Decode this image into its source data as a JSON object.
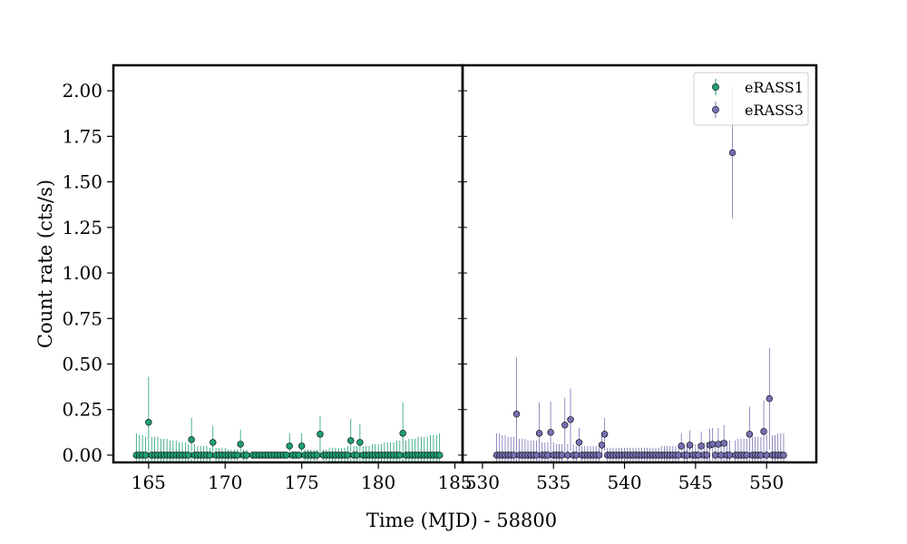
{
  "figure": {
    "xlabel": "Time (MJD) - 58800",
    "ylabel": "Count rate (cts/s)"
  },
  "legend": {
    "placement": "top-right",
    "entries": [
      {
        "label": "eRASS1",
        "color": "#1f9e74"
      },
      {
        "label": "eRASS3",
        "color": "#7570b3"
      }
    ]
  },
  "colors": {
    "erass1": "#1f9e74",
    "erass3": "#7570b3",
    "marker_edge": "#000000",
    "axes": "#000000"
  },
  "chart_data": [
    {
      "type": "scatter",
      "panel": "left",
      "series": [
        {
          "name": "eRASS1",
          "x": [
            164.2,
            164.4,
            164.6,
            164.8,
            165.0,
            165.2,
            165.4,
            165.6,
            165.8,
            166.0,
            166.2,
            166.4,
            166.6,
            166.8,
            167.0,
            167.2,
            167.4,
            167.6,
            167.8,
            168.0,
            168.2,
            168.4,
            168.6,
            168.8,
            169.0,
            169.2,
            169.4,
            169.6,
            169.8,
            170.0,
            170.2,
            170.4,
            170.6,
            170.8,
            171.0,
            171.2,
            171.4,
            171.8,
            172.0,
            172.2,
            172.4,
            172.6,
            172.8,
            173.0,
            173.2,
            173.4,
            173.6,
            173.8,
            174.0,
            174.2,
            174.4,
            174.6,
            174.8,
            175.0,
            175.2,
            175.4,
            175.6,
            175.8,
            176.0,
            176.2,
            176.4,
            176.6,
            176.8,
            177.0,
            177.2,
            177.4,
            177.6,
            177.8,
            178.0,
            178.2,
            178.4,
            178.6,
            178.8,
            179.0,
            179.2,
            179.4,
            179.6,
            179.8,
            180.0,
            180.2,
            180.4,
            180.6,
            180.8,
            181.0,
            181.2,
            181.4,
            181.6,
            181.8,
            182.0,
            182.2,
            182.4,
            182.6,
            182.8,
            183.0,
            183.2,
            183.4,
            183.6,
            183.8,
            184.0
          ],
          "y": [
            0.0,
            0.0,
            0.0,
            0.0,
            0.18,
            0.0,
            0.0,
            0.0,
            0.0,
            0.0,
            0.0,
            0.0,
            0.0,
            0.0,
            0.0,
            0.0,
            0.0,
            0.0,
            0.085,
            0.0,
            0.0,
            0.0,
            0.0,
            0.0,
            0.0,
            0.07,
            0.0,
            0.0,
            0.0,
            0.0,
            0.0,
            0.0,
            0.0,
            0.0,
            0.06,
            0.0,
            0.0,
            0.0,
            0.0,
            0.0,
            0.0,
            0.0,
            0.0,
            0.0,
            0.0,
            0.0,
            0.0,
            0.0,
            0.0,
            0.05,
            0.0,
            0.0,
            0.0,
            0.05,
            0.0,
            0.0,
            0.0,
            0.0,
            0.0,
            0.115,
            0.0,
            0.0,
            0.0,
            0.0,
            0.0,
            0.0,
            0.0,
            0.0,
            0.0,
            0.08,
            0.0,
            0.0,
            0.07,
            0.0,
            0.0,
            0.0,
            0.0,
            0.0,
            0.0,
            0.0,
            0.0,
            0.0,
            0.0,
            0.0,
            0.0,
            0.0,
            0.12,
            0.0,
            0.0,
            0.0,
            0.0,
            0.0,
            0.0,
            0.0,
            0.0,
            0.0,
            0.0,
            0.0,
            0.0
          ],
          "yerr": [
            0.12,
            0.11,
            0.11,
            0.1,
            0.25,
            0.1,
            0.1,
            0.1,
            0.09,
            0.09,
            0.09,
            0.08,
            0.08,
            0.08,
            0.07,
            0.07,
            0.07,
            0.06,
            0.12,
            0.06,
            0.05,
            0.05,
            0.05,
            0.05,
            0.04,
            0.09,
            0.04,
            0.04,
            0.04,
            0.04,
            0.03,
            0.03,
            0.03,
            0.03,
            0.08,
            0.03,
            0.03,
            0.02,
            0.02,
            0.02,
            0.02,
            0.02,
            0.02,
            0.02,
            0.02,
            0.02,
            0.02,
            0.02,
            0.02,
            0.07,
            0.02,
            0.02,
            0.02,
            0.07,
            0.03,
            0.03,
            0.03,
            0.03,
            0.03,
            0.1,
            0.03,
            0.03,
            0.04,
            0.04,
            0.04,
            0.04,
            0.04,
            0.04,
            0.05,
            0.12,
            0.05,
            0.05,
            0.1,
            0.05,
            0.05,
            0.05,
            0.06,
            0.06,
            0.06,
            0.06,
            0.07,
            0.07,
            0.07,
            0.07,
            0.08,
            0.08,
            0.17,
            0.08,
            0.09,
            0.09,
            0.09,
            0.1,
            0.1,
            0.1,
            0.1,
            0.11,
            0.11,
            0.11,
            0.12
          ]
        }
      ],
      "xlim": [
        162.7,
        185.5
      ],
      "ylim": [
        -0.04,
        2.14
      ],
      "xticks": [
        165,
        170,
        175,
        180,
        185
      ],
      "yticks": [
        0.0,
        0.25,
        0.5,
        0.75,
        1.0,
        1.25,
        1.5,
        1.75,
        2.0
      ],
      "yticklabels": [
        "0.00",
        "0.25",
        "0.50",
        "0.75",
        "1.00",
        "1.25",
        "1.50",
        "1.75",
        "2.00"
      ],
      "grid": false
    },
    {
      "type": "scatter",
      "panel": "right",
      "series": [
        {
          "name": "eRASS3",
          "x": [
            531.0,
            531.2,
            531.4,
            531.6,
            531.8,
            532.0,
            532.2,
            532.4,
            532.6,
            532.8,
            533.0,
            533.2,
            533.4,
            533.6,
            533.8,
            534.0,
            534.2,
            534.4,
            534.6,
            534.8,
            535.0,
            535.2,
            535.4,
            535.6,
            535.8,
            536.0,
            536.2,
            536.4,
            536.6,
            536.8,
            537.0,
            537.2,
            537.4,
            537.6,
            537.8,
            538.0,
            538.2,
            538.4,
            538.6,
            538.8,
            539.0,
            539.2,
            539.4,
            539.6,
            539.8,
            540.0,
            540.2,
            540.4,
            540.6,
            540.8,
            541.0,
            541.2,
            541.4,
            541.6,
            541.8,
            542.0,
            542.2,
            542.4,
            542.6,
            542.8,
            543.0,
            543.2,
            543.4,
            543.6,
            543.8,
            544.0,
            544.2,
            544.4,
            544.6,
            544.8,
            545.0,
            545.2,
            545.4,
            545.6,
            545.8,
            546.0,
            546.2,
            546.4,
            546.6,
            546.8,
            547.0,
            547.2,
            547.4,
            547.6,
            547.8,
            548.0,
            548.2,
            548.4,
            548.6,
            548.8,
            549.0,
            549.2,
            549.4,
            549.6,
            549.8,
            550.0,
            550.2,
            550.4,
            550.6,
            550.8,
            551.0,
            551.2
          ],
          "y": [
            0.0,
            0.0,
            0.0,
            0.0,
            0.0,
            0.0,
            0.0,
            0.225,
            0.0,
            0.0,
            0.0,
            0.0,
            0.0,
            0.0,
            0.0,
            0.12,
            0.0,
            0.0,
            0.0,
            0.125,
            0.0,
            0.0,
            0.0,
            0.0,
            0.165,
            0.0,
            0.195,
            0.0,
            0.0,
            0.07,
            0.0,
            0.0,
            0.0,
            0.0,
            0.0,
            0.0,
            0.0,
            0.055,
            0.115,
            0.0,
            0.0,
            0.0,
            0.0,
            0.0,
            0.0,
            0.0,
            0.0,
            0.0,
            0.0,
            0.0,
            0.0,
            0.0,
            0.0,
            0.0,
            0.0,
            0.0,
            0.0,
            0.0,
            0.0,
            0.0,
            0.0,
            0.0,
            0.0,
            0.0,
            0.0,
            0.05,
            0.0,
            0.0,
            0.055,
            0.0,
            0.0,
            0.0,
            0.05,
            0.0,
            0.0,
            0.055,
            0.06,
            0.0,
            0.06,
            0.0,
            0.065,
            0.0,
            0.0,
            1.66,
            0.0,
            0.0,
            0.0,
            0.0,
            0.0,
            0.115,
            0.0,
            0.0,
            0.0,
            0.0,
            0.13,
            0.0,
            0.31,
            0.0,
            0.0,
            0.0,
            0.0,
            0.0
          ],
          "yerr": [
            0.12,
            0.12,
            0.11,
            0.11,
            0.1,
            0.1,
            0.1,
            0.31,
            0.09,
            0.09,
            0.09,
            0.08,
            0.08,
            0.08,
            0.08,
            0.17,
            0.07,
            0.07,
            0.07,
            0.17,
            0.07,
            0.06,
            0.06,
            0.06,
            0.15,
            0.06,
            0.17,
            0.06,
            0.05,
            0.08,
            0.05,
            0.05,
            0.05,
            0.05,
            0.05,
            0.05,
            0.04,
            0.07,
            0.09,
            0.04,
            0.04,
            0.04,
            0.04,
            0.04,
            0.04,
            0.04,
            0.04,
            0.04,
            0.04,
            0.04,
            0.04,
            0.04,
            0.04,
            0.04,
            0.04,
            0.04,
            0.04,
            0.04,
            0.05,
            0.05,
            0.05,
            0.05,
            0.05,
            0.05,
            0.05,
            0.07,
            0.05,
            0.06,
            0.08,
            0.06,
            0.06,
            0.06,
            0.08,
            0.07,
            0.07,
            0.09,
            0.09,
            0.07,
            0.09,
            0.08,
            0.1,
            0.08,
            0.08,
            0.36,
            0.08,
            0.09,
            0.09,
            0.09,
            0.09,
            0.15,
            0.1,
            0.1,
            0.1,
            0.1,
            0.17,
            0.11,
            0.28,
            0.11,
            0.11,
            0.12,
            0.12,
            0.12
          ]
        }
      ],
      "xlim": [
        528.6,
        553.5
      ],
      "ylim": [
        -0.04,
        2.14
      ],
      "xticks": [
        530,
        535,
        540,
        545,
        550
      ],
      "grid": false
    }
  ]
}
